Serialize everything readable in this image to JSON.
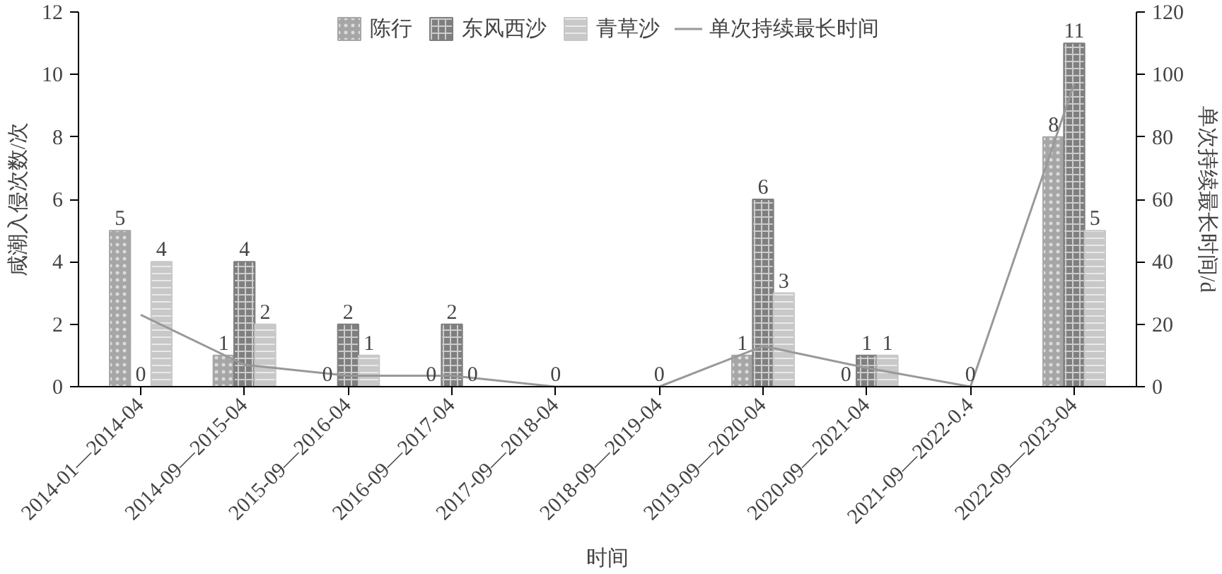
{
  "chart_data": {
    "type": "bar",
    "xlabel": "时间",
    "ylabel": "咸潮入侵次数/次",
    "y2label": "单次持续最长时间/d",
    "categories": [
      "2014-01—2014-04",
      "2014-09—2015-04",
      "2015-09—2016-04",
      "2016-09—2017-04",
      "2017-09—2018-04",
      "2018-09—2019-04",
      "2019-09—2020-04",
      "2020-09—2021-04",
      "2021-09—2022-0.4",
      "2022-09—2023-04"
    ],
    "series": [
      {
        "name": "陈行",
        "color": "#a6a6a6",
        "values": [
          5,
          1,
          0,
          0,
          0,
          0,
          1,
          0,
          0,
          8
        ],
        "value_labels": [
          "5",
          "1",
          "0",
          "0",
          null,
          null,
          "1",
          "0",
          null,
          "8"
        ]
      },
      {
        "name": "东风西沙",
        "color": "#7f7f7f",
        "values": [
          0,
          4,
          2,
          2,
          0,
          0,
          6,
          1,
          0,
          11
        ],
        "value_labels": [
          "0",
          "4",
          "2",
          "2",
          "0",
          "0",
          "6",
          "1",
          "0",
          "11"
        ]
      },
      {
        "name": "青草沙",
        "color": "#c8c8c8",
        "values": [
          4,
          2,
          1,
          0,
          0,
          0,
          3,
          1,
          0,
          5
        ],
        "value_labels": [
          "4",
          "2",
          "1",
          "0",
          null,
          null,
          "3",
          "1",
          null,
          "5"
        ]
      },
      {
        "name": "单次持续最长时间",
        "type": "line",
        "axis": "y2",
        "color": "#999999",
        "values": [
          23,
          7,
          3.5,
          3.5,
          0,
          0,
          13,
          6,
          0,
          97
        ]
      }
    ],
    "ylim": [
      0,
      12
    ],
    "yticks": [
      0,
      2,
      4,
      6,
      8,
      10,
      12
    ],
    "y2lim": [
      0,
      120
    ],
    "y2ticks": [
      0,
      20,
      40,
      60,
      80,
      100,
      120
    ],
    "grid": false,
    "legend": "top"
  }
}
